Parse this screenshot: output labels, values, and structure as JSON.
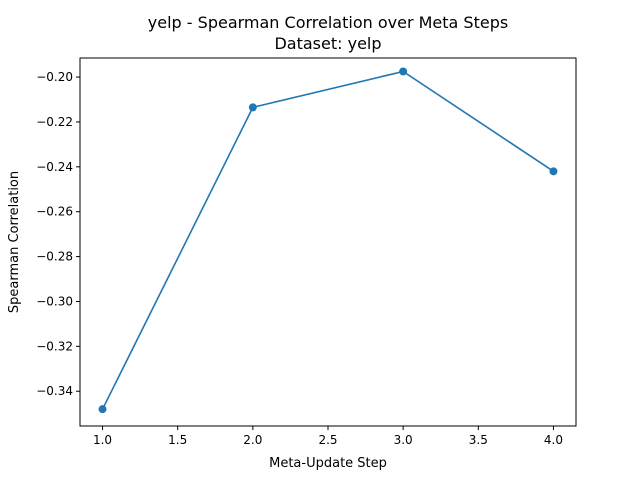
{
  "chart_data": {
    "type": "line",
    "title": "yelp - Spearman Correlation over Meta Steps",
    "subtitle": "Dataset: yelp",
    "xlabel": "Meta-Update Step",
    "ylabel": "Spearman Correlation",
    "xlim": [
      0.85,
      4.15
    ],
    "ylim": [
      -0.3555,
      -0.1915
    ],
    "x_ticks": [
      1.0,
      1.5,
      2.0,
      2.5,
      3.0,
      3.5,
      4.0
    ],
    "x_tick_labels": [
      "1.0",
      "1.5",
      "2.0",
      "2.5",
      "3.0",
      "3.5",
      "4.0"
    ],
    "y_ticks": [
      -0.34,
      -0.32,
      -0.3,
      -0.28,
      -0.26,
      -0.24,
      -0.22,
      -0.2
    ],
    "y_tick_labels": [
      "−0.34",
      "−0.32",
      "−0.30",
      "−0.28",
      "−0.26",
      "−0.24",
      "−0.22",
      "−0.20"
    ],
    "grid": false,
    "series": [
      {
        "x": [
          1,
          2,
          3,
          4
        ],
        "values": [
          -0.348,
          -0.2135,
          -0.1975,
          -0.242
        ],
        "color": "#1f77b4",
        "marker": "circle"
      }
    ]
  }
}
